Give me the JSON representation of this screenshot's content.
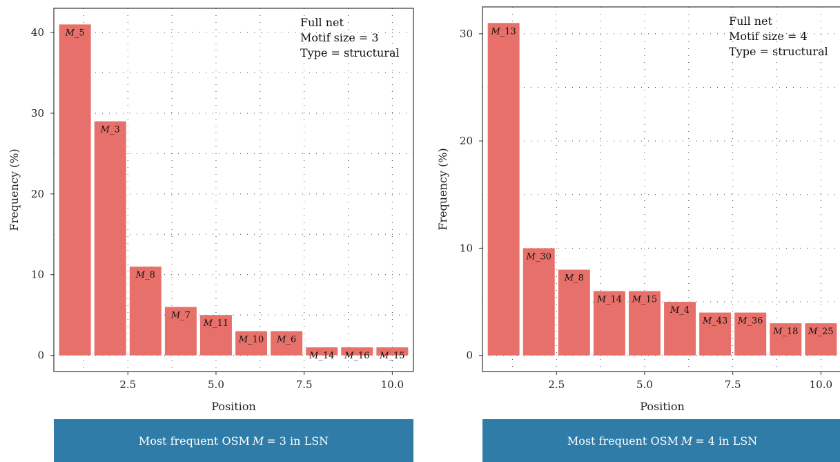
{
  "chart_data": [
    {
      "type": "bar",
      "ylabel": "Frequency (%)",
      "xlabel": "Position",
      "x": [
        1,
        2,
        3,
        4,
        5,
        6,
        7,
        8,
        9,
        10
      ],
      "values": [
        41,
        29,
        11,
        6,
        5,
        3,
        3,
        1,
        1,
        1
      ],
      "bar_labels": [
        "M_5",
        "M_3",
        "M_8",
        "M_7",
        "M_11",
        "M_10",
        "M_6",
        "M_14",
        "M_16",
        "M_15"
      ],
      "xlim": [
        0.4,
        10.6
      ],
      "ylim": [
        -2,
        43
      ],
      "xticks": [
        "2.5",
        "5.0",
        "7.5",
        "10.0"
      ],
      "xtick_values": [
        2.5,
        5.0,
        7.5,
        10.0
      ],
      "yticks": [
        "0",
        "10",
        "20",
        "30",
        "40"
      ],
      "ytick_values": [
        0,
        10,
        20,
        30,
        40
      ],
      "annotation": [
        "Full net",
        "Motif size = 3",
        "Type = structural"
      ],
      "bar_color": "#e8706a",
      "grid": "dotted"
    },
    {
      "type": "bar",
      "ylabel": "Frequency (%)",
      "xlabel": "Position",
      "x": [
        1,
        2,
        3,
        4,
        5,
        6,
        7,
        8,
        9,
        10
      ],
      "values": [
        31,
        10,
        8,
        6,
        6,
        5,
        4,
        4,
        3,
        3
      ],
      "bar_labels": [
        "M_13",
        "M_30",
        "M_8",
        "M_14",
        "M_15",
        "M_4",
        "M_43",
        "M_36",
        "M_18",
        "M_25"
      ],
      "xlim": [
        0.4,
        10.6
      ],
      "ylim": [
        -1.5,
        32.5
      ],
      "xticks": [
        "2.5",
        "5.0",
        "7.5",
        "10.0"
      ],
      "xtick_values": [
        2.5,
        5.0,
        7.5,
        10.0
      ],
      "yticks": [
        "0",
        "10",
        "20",
        "30"
      ],
      "ytick_values": [
        0,
        10,
        20,
        30
      ],
      "annotation": [
        "Full net",
        "Motif size = 4",
        "Type = structural"
      ],
      "bar_color": "#e8706a",
      "grid": "dotted"
    }
  ],
  "captions": [
    {
      "prefix": "Most frequent OSM",
      "var": "M",
      "suffix": "= 3 in LSN"
    },
    {
      "prefix": "Most frequent OSM",
      "var": "M",
      "suffix": "= 4 in LSN"
    }
  ],
  "colors": {
    "bar": "#e8706a",
    "caption_bg": "#2f7ca8",
    "axis": "#333333"
  }
}
